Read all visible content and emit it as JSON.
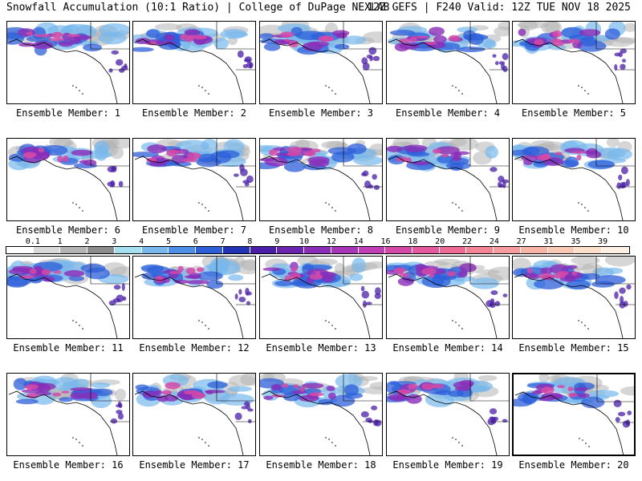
{
  "header": {
    "left": "Snowfall Accumulation (10:1 Ratio) | College of DuPage NEXLAB",
    "right": "12Z GEFS | F240 Valid: 12Z TUE NOV 18 2025"
  },
  "colorbar": {
    "labels": [
      "0.1",
      "1",
      "2",
      "3",
      "4",
      "5",
      "6",
      "7",
      "8",
      "9",
      "10",
      "12",
      "14",
      "16",
      "18",
      "20",
      "22",
      "24",
      "27",
      "31",
      "35",
      "39"
    ],
    "colors": [
      "#ffffff",
      "#d9d9d9",
      "#b4b4b4",
      "#8c8c8c",
      "#a6e0ef",
      "#78b8ec",
      "#4d8fe8",
      "#2e5fd9",
      "#2233b8",
      "#4a1fa8",
      "#6a25b0",
      "#8a2db8",
      "#a635b8",
      "#c03fb4",
      "#d449a8",
      "#e25a9c",
      "#ec6c96",
      "#f28496",
      "#f59d9e",
      "#f7b5a8",
      "#f8c9b6",
      "#fadfcb",
      "#fdf0e4"
    ]
  },
  "members": [
    {
      "label": "Ensemble Member: 1"
    },
    {
      "label": "Ensemble Member: 2"
    },
    {
      "label": "Ensemble Member: 3"
    },
    {
      "label": "Ensemble Member: 4"
    },
    {
      "label": "Ensemble Member: 5"
    },
    {
      "label": "Ensemble Member: 6"
    },
    {
      "label": "Ensemble Member: 7"
    },
    {
      "label": "Ensemble Member: 8"
    },
    {
      "label": "Ensemble Member: 9"
    },
    {
      "label": "Ensemble Member: 10"
    },
    {
      "label": "Ensemble Member: 11"
    },
    {
      "label": "Ensemble Member: 12"
    },
    {
      "label": "Ensemble Member: 13"
    },
    {
      "label": "Ensemble Member: 14"
    },
    {
      "label": "Ensemble Member: 15"
    },
    {
      "label": "Ensemble Member: 16"
    },
    {
      "label": "Ensemble Member: 17"
    },
    {
      "label": "Ensemble Member: 18"
    },
    {
      "label": "Ensemble Member: 19"
    },
    {
      "label": "Ensemble Member: 20"
    }
  ]
}
